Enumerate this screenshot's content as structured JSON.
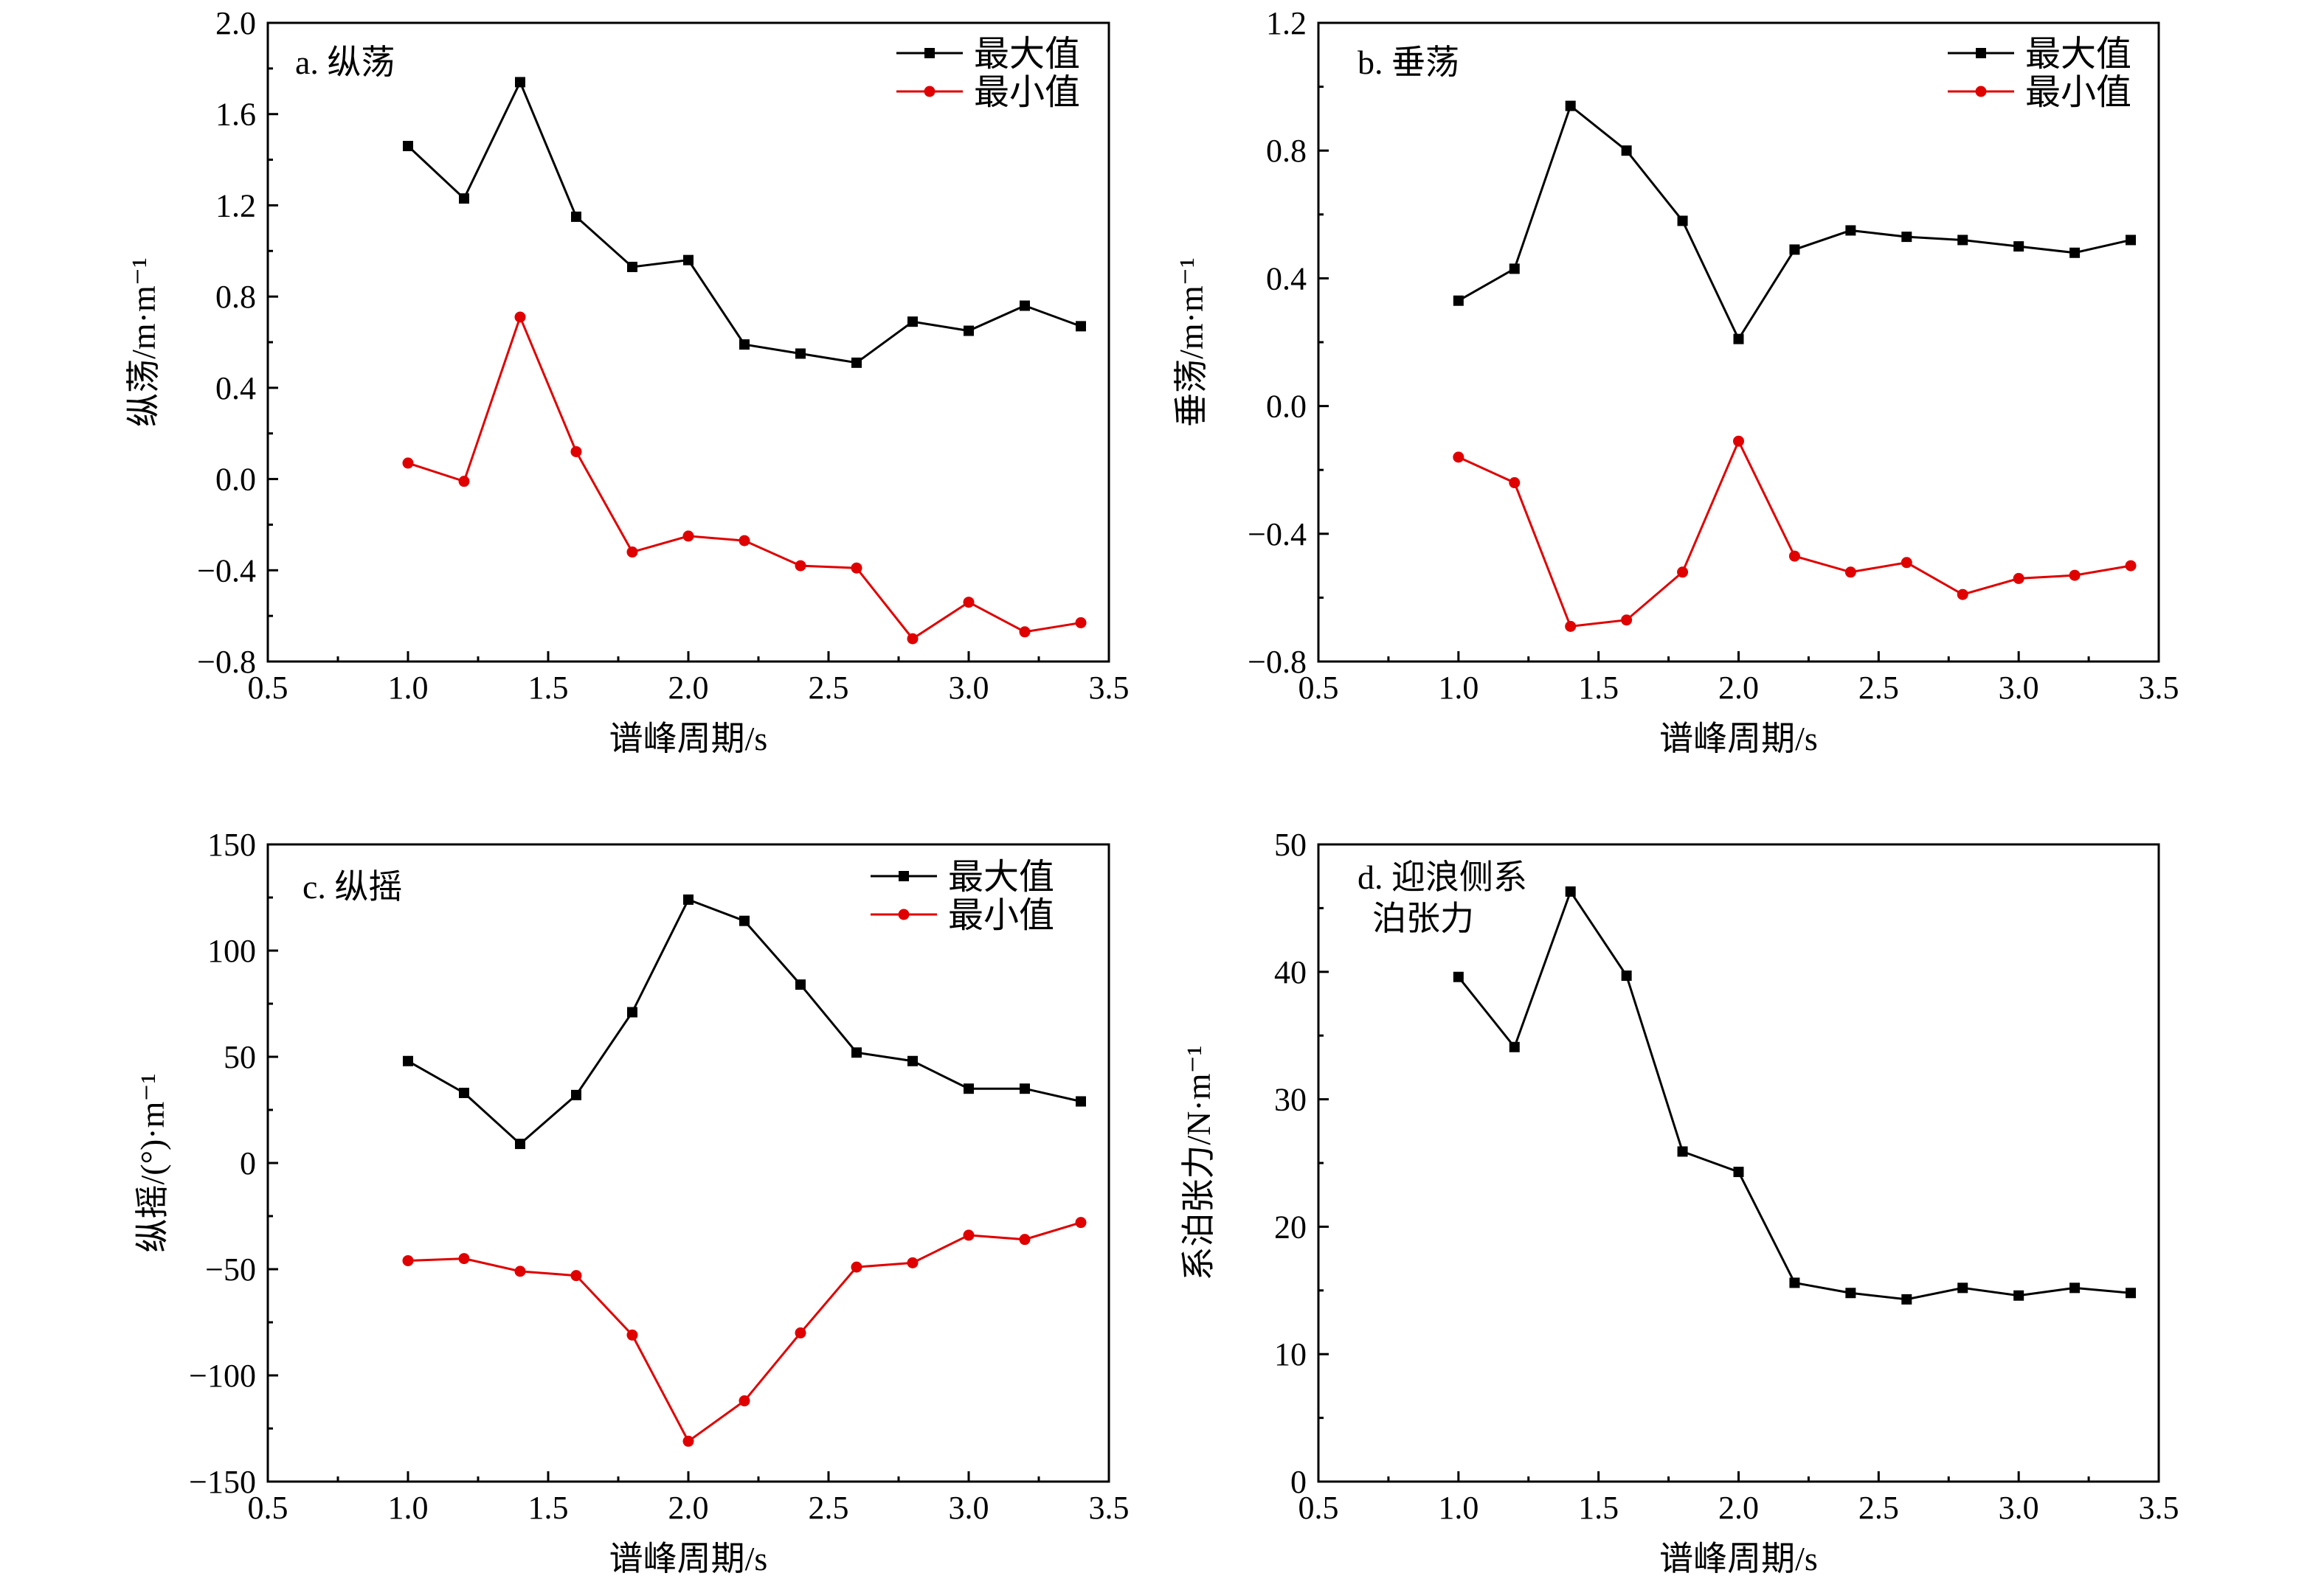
{
  "figure": {
    "background": "#ffffff"
  },
  "colors": {
    "max": "#000000",
    "min": "#e00000"
  },
  "chart_data": [
    {
      "id": "a",
      "type": "line",
      "panel_label": "a. 纵荡",
      "xlabel": "谱峰周期/s",
      "ylabel": "纵荡/m·m⁻¹",
      "xlim": [
        0.5,
        3.5
      ],
      "ylim": [
        -0.8,
        2.0
      ],
      "xticks": [
        0.5,
        1.0,
        1.5,
        2.0,
        2.5,
        3.0,
        3.5
      ],
      "xtick_labels": [
        "0.5",
        "1.0",
        "1.5",
        "2.0",
        "2.5",
        "3.0",
        "3.5"
      ],
      "yticks": [
        -0.8,
        -0.4,
        0.0,
        0.4,
        0.8,
        1.2,
        1.6,
        2.0
      ],
      "ytick_labels": [
        "−0.8",
        "−0.4",
        "0.0",
        "0.4",
        "0.8",
        "1.2",
        "1.6",
        "2.0"
      ],
      "legend": "top-right",
      "x": [
        1.0,
        1.2,
        1.4,
        1.6,
        1.8,
        2.0,
        2.2,
        2.4,
        2.6,
        2.8,
        3.0,
        3.2,
        3.4
      ],
      "series": [
        {
          "name": "最大值",
          "color": "#000000",
          "marker": "square",
          "values": [
            1.46,
            1.23,
            1.74,
            1.15,
            0.93,
            0.96,
            0.59,
            0.55,
            0.51,
            0.69,
            0.65,
            0.76,
            0.67
          ]
        },
        {
          "name": "最小值",
          "color": "#e00000",
          "marker": "circle",
          "values": [
            0.07,
            -0.01,
            0.71,
            0.12,
            -0.32,
            -0.25,
            -0.27,
            -0.38,
            -0.39,
            -0.7,
            -0.54,
            -0.67,
            -0.63
          ]
        }
      ]
    },
    {
      "id": "b",
      "type": "line",
      "panel_label": "b. 垂荡",
      "xlabel": "谱峰周期/s",
      "ylabel": "垂荡/m·m⁻¹",
      "xlim": [
        0.5,
        3.5
      ],
      "ylim": [
        -0.8,
        1.2
      ],
      "xticks": [
        0.5,
        1.0,
        1.5,
        2.0,
        2.5,
        3.0,
        3.5
      ],
      "xtick_labels": [
        "0.5",
        "1.0",
        "1.5",
        "2.0",
        "2.5",
        "3.0",
        "3.5"
      ],
      "yticks": [
        -0.8,
        -0.4,
        0.0,
        0.4,
        0.8,
        1.2
      ],
      "ytick_labels": [
        "−0.8",
        "−0.4",
        "0.0",
        "0.4",
        "0.8",
        "1.2"
      ],
      "legend": "top-right",
      "x": [
        1.0,
        1.2,
        1.4,
        1.6,
        1.8,
        2.0,
        2.2,
        2.4,
        2.6,
        2.8,
        3.0,
        3.2,
        3.4
      ],
      "series": [
        {
          "name": "最大值",
          "color": "#000000",
          "marker": "square",
          "values": [
            0.33,
            0.43,
            0.94,
            0.8,
            0.58,
            0.21,
            0.49,
            0.55,
            0.53,
            0.52,
            0.5,
            0.48,
            0.52
          ]
        },
        {
          "name": "最小值",
          "color": "#e00000",
          "marker": "circle",
          "values": [
            -0.16,
            -0.24,
            -0.69,
            -0.67,
            -0.52,
            -0.11,
            -0.47,
            -0.52,
            -0.49,
            -0.59,
            -0.54,
            -0.53,
            -0.5
          ]
        }
      ]
    },
    {
      "id": "c",
      "type": "line",
      "panel_label": "c. 纵摇",
      "xlabel": "谱峰周期/s",
      "ylabel": "纵摇/(°)·m⁻¹",
      "xlim": [
        0.5,
        3.5
      ],
      "ylim": [
        -150,
        150
      ],
      "xticks": [
        0.5,
        1.0,
        1.5,
        2.0,
        2.5,
        3.0,
        3.5
      ],
      "xtick_labels": [
        "0.5",
        "1.0",
        "1.5",
        "2.0",
        "2.5",
        "3.0",
        "3.5"
      ],
      "yticks": [
        -150,
        -100,
        -50,
        0,
        50,
        100,
        150
      ],
      "ytick_labels": [
        "−150",
        "−100",
        "−50",
        "0",
        "50",
        "100",
        "150"
      ],
      "legend": "top-right",
      "x": [
        1.0,
        1.2,
        1.4,
        1.6,
        1.8,
        2.0,
        2.2,
        2.4,
        2.6,
        2.8,
        3.0,
        3.2,
        3.4
      ],
      "series": [
        {
          "name": "最大值",
          "color": "#000000",
          "marker": "square",
          "values": [
            48,
            33,
            9,
            32,
            71,
            124,
            114,
            84,
            52,
            48,
            35,
            35,
            29
          ]
        },
        {
          "name": "最小值",
          "color": "#e00000",
          "marker": "circle",
          "values": [
            -46,
            -45,
            -51,
            -53,
            -81,
            -131,
            -112,
            -80,
            -49,
            -47,
            -34,
            -36,
            -28
          ]
        }
      ]
    },
    {
      "id": "d",
      "type": "line",
      "panel_label_lines": [
        "d. 迎浪侧系",
        "泊张力"
      ],
      "xlabel": "谱峰周期/s",
      "ylabel": "系泊张力/N·m⁻¹",
      "xlim": [
        0.5,
        3.5
      ],
      "ylim": [
        0,
        50
      ],
      "xticks": [
        0.5,
        1.0,
        1.5,
        2.0,
        2.5,
        3.0,
        3.5
      ],
      "xtick_labels": [
        "0.5",
        "1.0",
        "1.5",
        "2.0",
        "2.5",
        "3.0",
        "3.5"
      ],
      "yticks": [
        0,
        10,
        20,
        30,
        40,
        50
      ],
      "ytick_labels": [
        "0",
        "10",
        "20",
        "30",
        "40",
        "50"
      ],
      "x": [
        1.0,
        1.2,
        1.4,
        1.6,
        1.8,
        2.0,
        2.2,
        2.4,
        2.6,
        2.8,
        3.0,
        3.2,
        3.4
      ],
      "series": [
        {
          "color": "#000000",
          "marker": "square",
          "values": [
            39.6,
            34.1,
            46.3,
            39.7,
            25.9,
            24.3,
            15.6,
            14.8,
            14.3,
            15.2,
            14.6,
            15.2,
            14.8
          ]
        }
      ]
    }
  ]
}
